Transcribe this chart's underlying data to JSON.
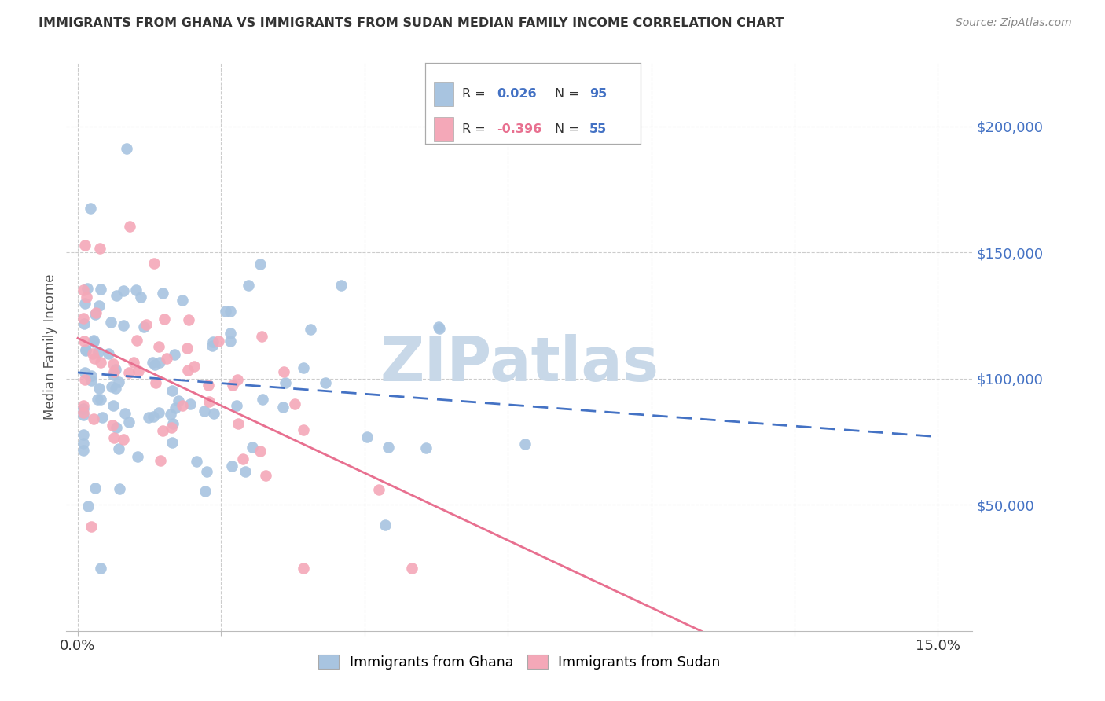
{
  "title": "IMMIGRANTS FROM GHANA VS IMMIGRANTS FROM SUDAN MEDIAN FAMILY INCOME CORRELATION CHART",
  "source": "Source: ZipAtlas.com",
  "ylabel": "Median Family Income",
  "ghana_R": 0.026,
  "ghana_N": 95,
  "sudan_R": -0.396,
  "sudan_N": 55,
  "ghana_color": "#a8c4e0",
  "sudan_color": "#f4a8b8",
  "ghana_line_color": "#4472c4",
  "sudan_line_color": "#e87090",
  "watermark": "ZIPatlas",
  "watermark_color": "#c8d8e8",
  "value_color": "#4472c4",
  "sudan_r_color": "#e87090",
  "ytick_vals": [
    50000,
    100000,
    150000,
    200000
  ],
  "ytick_labels": [
    "$50,000",
    "$100,000",
    "$150,000",
    "$200,000"
  ],
  "xtick_vals": [
    0.0,
    0.025,
    0.05,
    0.075,
    0.1,
    0.125,
    0.15
  ],
  "xlim": [
    -0.002,
    0.156
  ],
  "ylim": [
    0,
    225000
  ]
}
